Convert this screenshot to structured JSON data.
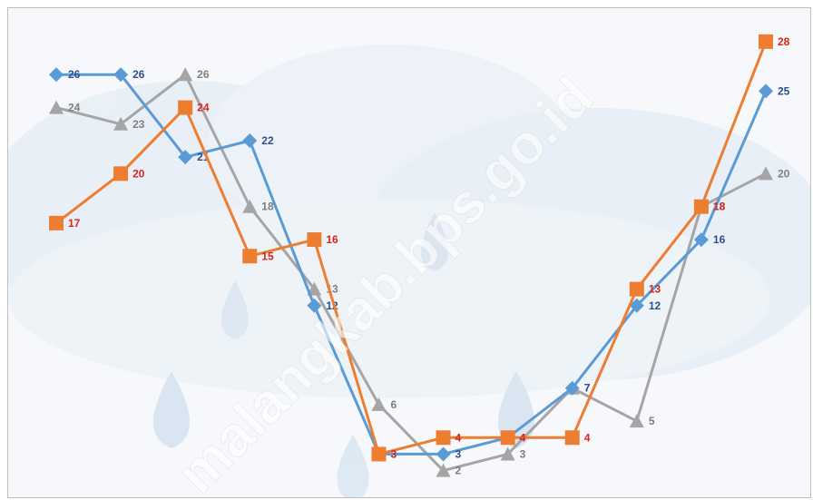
{
  "chart_data": {
    "type": "line",
    "title": "",
    "xlabel": "",
    "ylabel": "",
    "x": [
      1,
      2,
      3,
      4,
      5,
      6,
      7,
      8,
      9,
      10,
      11,
      12
    ],
    "ylim": [
      0,
      30
    ],
    "grid": false,
    "legend": "none",
    "series": [
      {
        "values": [
          26,
          26,
          21,
          22,
          12,
          3,
          3,
          4,
          7,
          12,
          16,
          25
        ],
        "color": "#5b9bd5",
        "label_color": "#2f4f8a",
        "marker": "diamond"
      },
      {
        "values": [
          17,
          20,
          24,
          15,
          16,
          3,
          4,
          4,
          4,
          13,
          18,
          28
        ],
        "color": "#ed7d31",
        "label_color": "#d9261c",
        "marker": "square"
      },
      {
        "values": [
          24,
          23,
          26,
          18,
          13,
          6,
          2,
          3,
          7,
          5,
          18,
          20
        ],
        "color": "#a5a5a5",
        "label_color": "#7f7f7f",
        "marker": "triangle"
      }
    ]
  },
  "watermark": "malangkab.bps.go.id"
}
